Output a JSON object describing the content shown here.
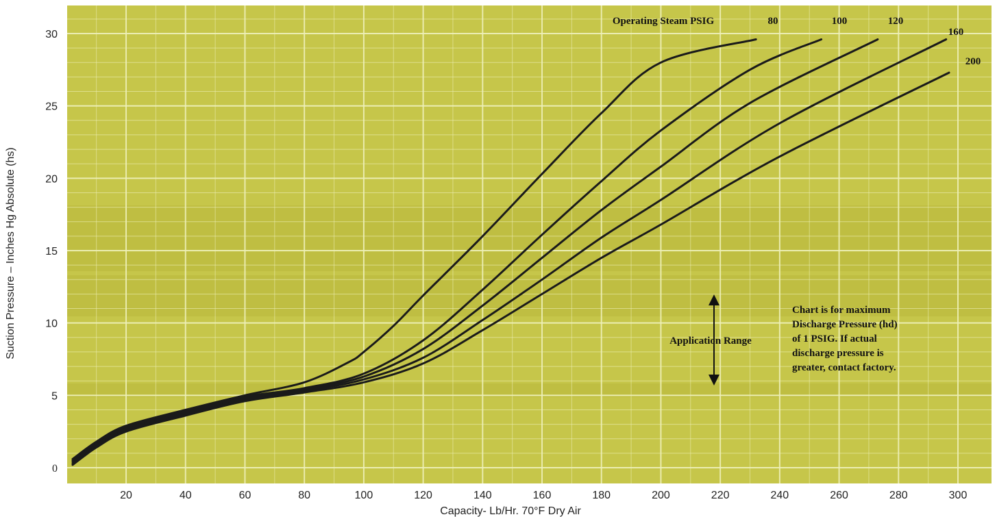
{
  "chart_data": {
    "type": "line",
    "xlabel": "Capacity- Lb/Hr. 70°F Dry Air",
    "ylabel": "Suction Pressure – Inches Hg Absolute (hs)",
    "xlim": [
      0,
      305
    ],
    "ylim": [
      -0.5,
      32
    ],
    "x_ticks": [
      "20",
      "40",
      "60",
      "80",
      "100",
      "120",
      "140",
      "160",
      "180",
      "200",
      "220",
      "240",
      "260",
      "280",
      "300"
    ],
    "y_ticks": [
      "0",
      "5",
      "10",
      "15",
      "20",
      "25",
      "30"
    ],
    "grid": true,
    "background": "#c6c64a",
    "series_color": "#1a1a1a",
    "legend_title": "Operating Steam PSIG",
    "series": [
      {
        "name": "80",
        "points": [
          [
            2,
            0.6
          ],
          [
            10,
            1.8
          ],
          [
            20,
            2.9
          ],
          [
            40,
            4.0
          ],
          [
            60,
            5.0
          ],
          [
            80,
            5.9
          ],
          [
            95,
            7.3
          ],
          [
            100,
            8.0
          ],
          [
            110,
            9.8
          ],
          [
            120,
            11.9
          ],
          [
            140,
            16.0
          ],
          [
            160,
            20.3
          ],
          [
            180,
            24.5
          ],
          [
            200,
            28.0
          ],
          [
            232,
            29.6
          ]
        ]
      },
      {
        "name": "100",
        "points": [
          [
            2,
            0.5
          ],
          [
            10,
            1.7
          ],
          [
            20,
            2.8
          ],
          [
            40,
            3.9
          ],
          [
            60,
            4.9
          ],
          [
            80,
            5.5
          ],
          [
            100,
            6.5
          ],
          [
            120,
            8.8
          ],
          [
            140,
            12.3
          ],
          [
            160,
            16.1
          ],
          [
            180,
            19.8
          ],
          [
            200,
            23.3
          ],
          [
            230,
            27.5
          ],
          [
            254,
            29.6
          ]
        ]
      },
      {
        "name": "120",
        "points": [
          [
            2,
            0.4
          ],
          [
            10,
            1.6
          ],
          [
            20,
            2.7
          ],
          [
            40,
            3.8
          ],
          [
            60,
            4.8
          ],
          [
            80,
            5.4
          ],
          [
            100,
            6.3
          ],
          [
            120,
            8.2
          ],
          [
            140,
            11.2
          ],
          [
            160,
            14.5
          ],
          [
            180,
            17.8
          ],
          [
            200,
            20.8
          ],
          [
            230,
            25.2
          ],
          [
            273,
            29.6
          ]
        ]
      },
      {
        "name": "160",
        "points": [
          [
            2,
            0.3
          ],
          [
            10,
            1.5
          ],
          [
            20,
            2.6
          ],
          [
            40,
            3.7
          ],
          [
            60,
            4.7
          ],
          [
            80,
            5.3
          ],
          [
            100,
            6.1
          ],
          [
            120,
            7.6
          ],
          [
            140,
            10.2
          ],
          [
            160,
            13.0
          ],
          [
            180,
            15.9
          ],
          [
            200,
            18.5
          ],
          [
            240,
            23.8
          ],
          [
            296,
            29.6
          ]
        ]
      },
      {
        "name": "200",
        "points": [
          [
            2,
            0.2
          ],
          [
            10,
            1.4
          ],
          [
            20,
            2.5
          ],
          [
            40,
            3.6
          ],
          [
            60,
            4.6
          ],
          [
            80,
            5.2
          ],
          [
            100,
            5.9
          ],
          [
            120,
            7.2
          ],
          [
            140,
            9.5
          ],
          [
            160,
            12.0
          ],
          [
            180,
            14.5
          ],
          [
            200,
            16.8
          ],
          [
            240,
            21.5
          ],
          [
            297,
            27.3
          ]
        ]
      }
    ],
    "annotations": {
      "range_label": "Application Range",
      "note_lines": [
        "Chart is for maximum",
        "Discharge Pressure (hd)",
        "of 1 PSIG.  If actual",
        "discharge pressure is",
        "greater, contact factory."
      ]
    }
  }
}
